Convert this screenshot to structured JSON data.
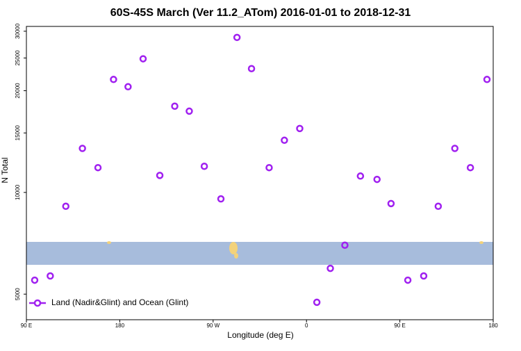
{
  "chart_data": {
    "type": "scatter",
    "title": "60S-45S March (Ver 11.2_ATom)   2016-01-01 to 2018-12-31",
    "x_label": "Longitude (deg E)",
    "y_label": "N Total",
    "xlim": [
      90,
      540
    ],
    "xticks": [
      {
        "value": 90,
        "label": "90 E"
      },
      {
        "value": 180,
        "label": "180"
      },
      {
        "value": 270,
        "label": "90 W"
      },
      {
        "value": 360,
        "label": "0"
      },
      {
        "value": 450,
        "label": "90 E"
      },
      {
        "value": 540,
        "label": "180"
      }
    ],
    "ylim": [
      4200,
      31000
    ],
    "log_y": true,
    "yticks": [
      5000,
      10000,
      15000,
      20000,
      25000,
      30000
    ],
    "legend": "bottom-left",
    "series": [
      {
        "name": "Land (Nadir&Glint) and Ocean (Glint)",
        "color": "#a020f0",
        "x": [
          98,
          113,
          128,
          144,
          159,
          174,
          188,
          202.5,
          218.6,
          233,
          247,
          261.5,
          277.5,
          293,
          307,
          324,
          338.7,
          353.5,
          370,
          383,
          397,
          412,
          428,
          441.5,
          457.7,
          473,
          487,
          503,
          518,
          534
        ],
        "values": [
          5500,
          5660,
          9100,
          13500,
          11840,
          21600,
          20550,
          24860,
          11230,
          18000,
          17400,
          11950,
          9570,
          28760,
          23250,
          11840,
          14270,
          15460,
          4730,
          5960,
          6980,
          11180,
          10930,
          9270,
          5500,
          5660,
          9100,
          13500,
          11840,
          21600
        ]
      }
    ]
  }
}
